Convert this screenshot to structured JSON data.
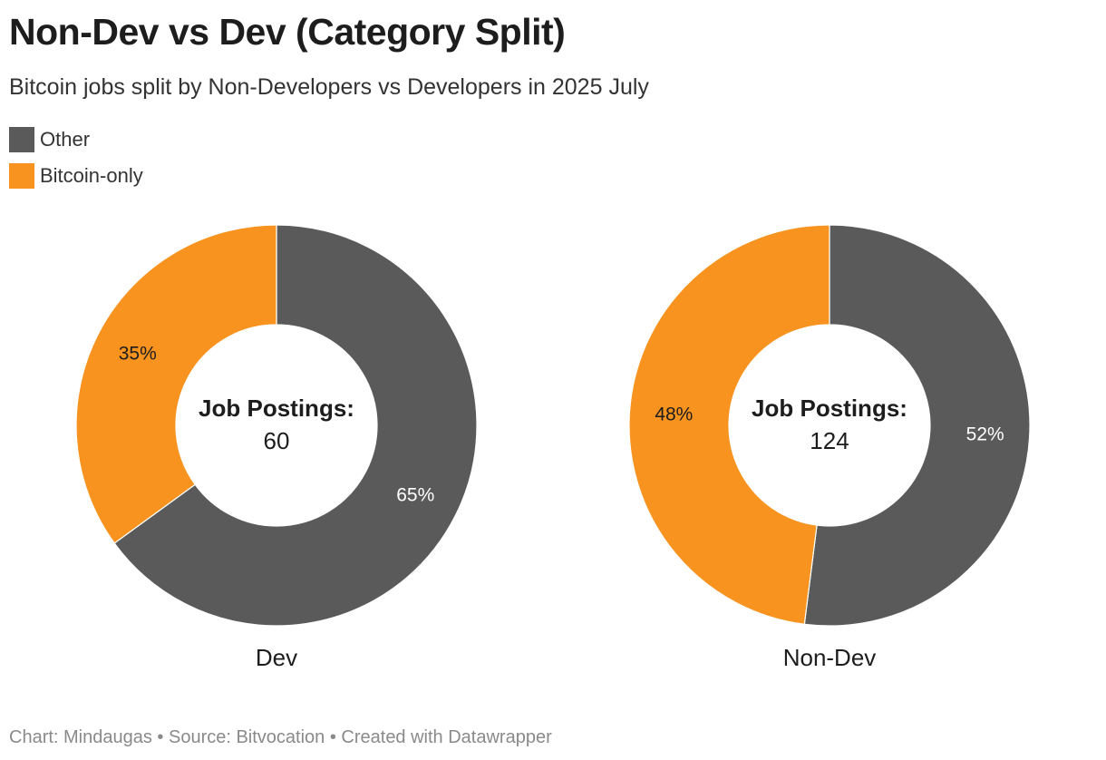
{
  "header": {
    "title": "Non-Dev vs Dev (Category Split)",
    "subtitle": "Bitcoin jobs split by Non-Developers vs Developers in 2025 July"
  },
  "legend": {
    "items": [
      {
        "label": "Other",
        "color": "#5a5a5a"
      },
      {
        "label": "Bitcoin-only",
        "color": "#f7931e"
      }
    ]
  },
  "footer": {
    "credit": "Chart: Mindaugas • Source: Bitvocation • Created with Datawrapper"
  },
  "chart_data": [
    {
      "type": "pie",
      "variant": "donut",
      "label": "Dev",
      "center_label": "Job Postings:",
      "center_value": "60",
      "slices": [
        {
          "name": "Other",
          "value": 65,
          "label": "65%",
          "color": "#5a5a5a"
        },
        {
          "name": "Bitcoin-only",
          "value": 35,
          "label": "35%",
          "color": "#f7931e"
        }
      ]
    },
    {
      "type": "pie",
      "variant": "donut",
      "label": "Non-Dev",
      "center_label": "Job Postings:",
      "center_value": "124",
      "slices": [
        {
          "name": "Other",
          "value": 52,
          "label": "52%",
          "color": "#5a5a5a"
        },
        {
          "name": "Bitcoin-only",
          "value": 48,
          "label": "48%",
          "color": "#f7931e"
        }
      ]
    }
  ]
}
